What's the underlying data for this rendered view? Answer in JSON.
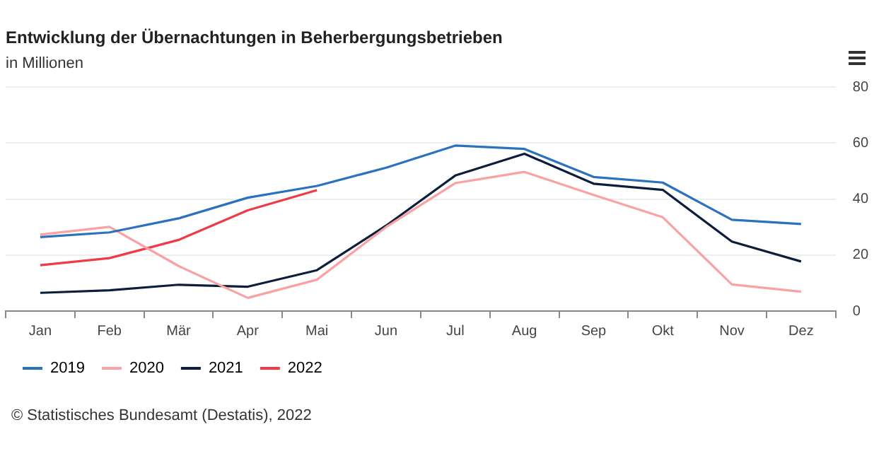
{
  "chart_data": {
    "type": "line",
    "title": "Entwicklung der Übernachtungen in Beherbergungsbetrieben",
    "subtitle": "in Millionen",
    "categories": [
      "Jan",
      "Feb",
      "Mär",
      "Apr",
      "Mai",
      "Jun",
      "Jul",
      "Aug",
      "Sep",
      "Okt",
      "Nov",
      "Dez"
    ],
    "series": [
      {
        "name": "2019",
        "color": "#2a72bf",
        "values": [
          26.4,
          28.1,
          33.1,
          40.5,
          44.7,
          51.2,
          59.1,
          57.9,
          47.9,
          45.9,
          32.6,
          31.1
        ]
      },
      {
        "name": "2020",
        "color": "#f9a1a3",
        "values": [
          27.3,
          30.1,
          16.1,
          4.7,
          11.2,
          30.0,
          45.7,
          49.7,
          41.5,
          33.5,
          9.5,
          6.9
        ]
      },
      {
        "name": "2021",
        "color": "#0c1e3c",
        "values": [
          6.5,
          7.4,
          9.4,
          8.7,
          14.6,
          30.5,
          48.4,
          56.2,
          45.5,
          43.3,
          24.8,
          17.7
        ]
      },
      {
        "name": "2022",
        "color": "#f03a47",
        "values": [
          16.4,
          18.9,
          25.4,
          36.0,
          43.2,
          null,
          null,
          null,
          null,
          null,
          null,
          null
        ]
      }
    ],
    "ylim": [
      0,
      80
    ],
    "yticks": [
      0,
      20,
      40,
      60,
      80
    ],
    "grid": "y",
    "legend": "bottom left",
    "marker": "none",
    "line_style": "solid",
    "annotations": [
      "© Statistisches Bundesamt (Destatis), 2022"
    ]
  }
}
